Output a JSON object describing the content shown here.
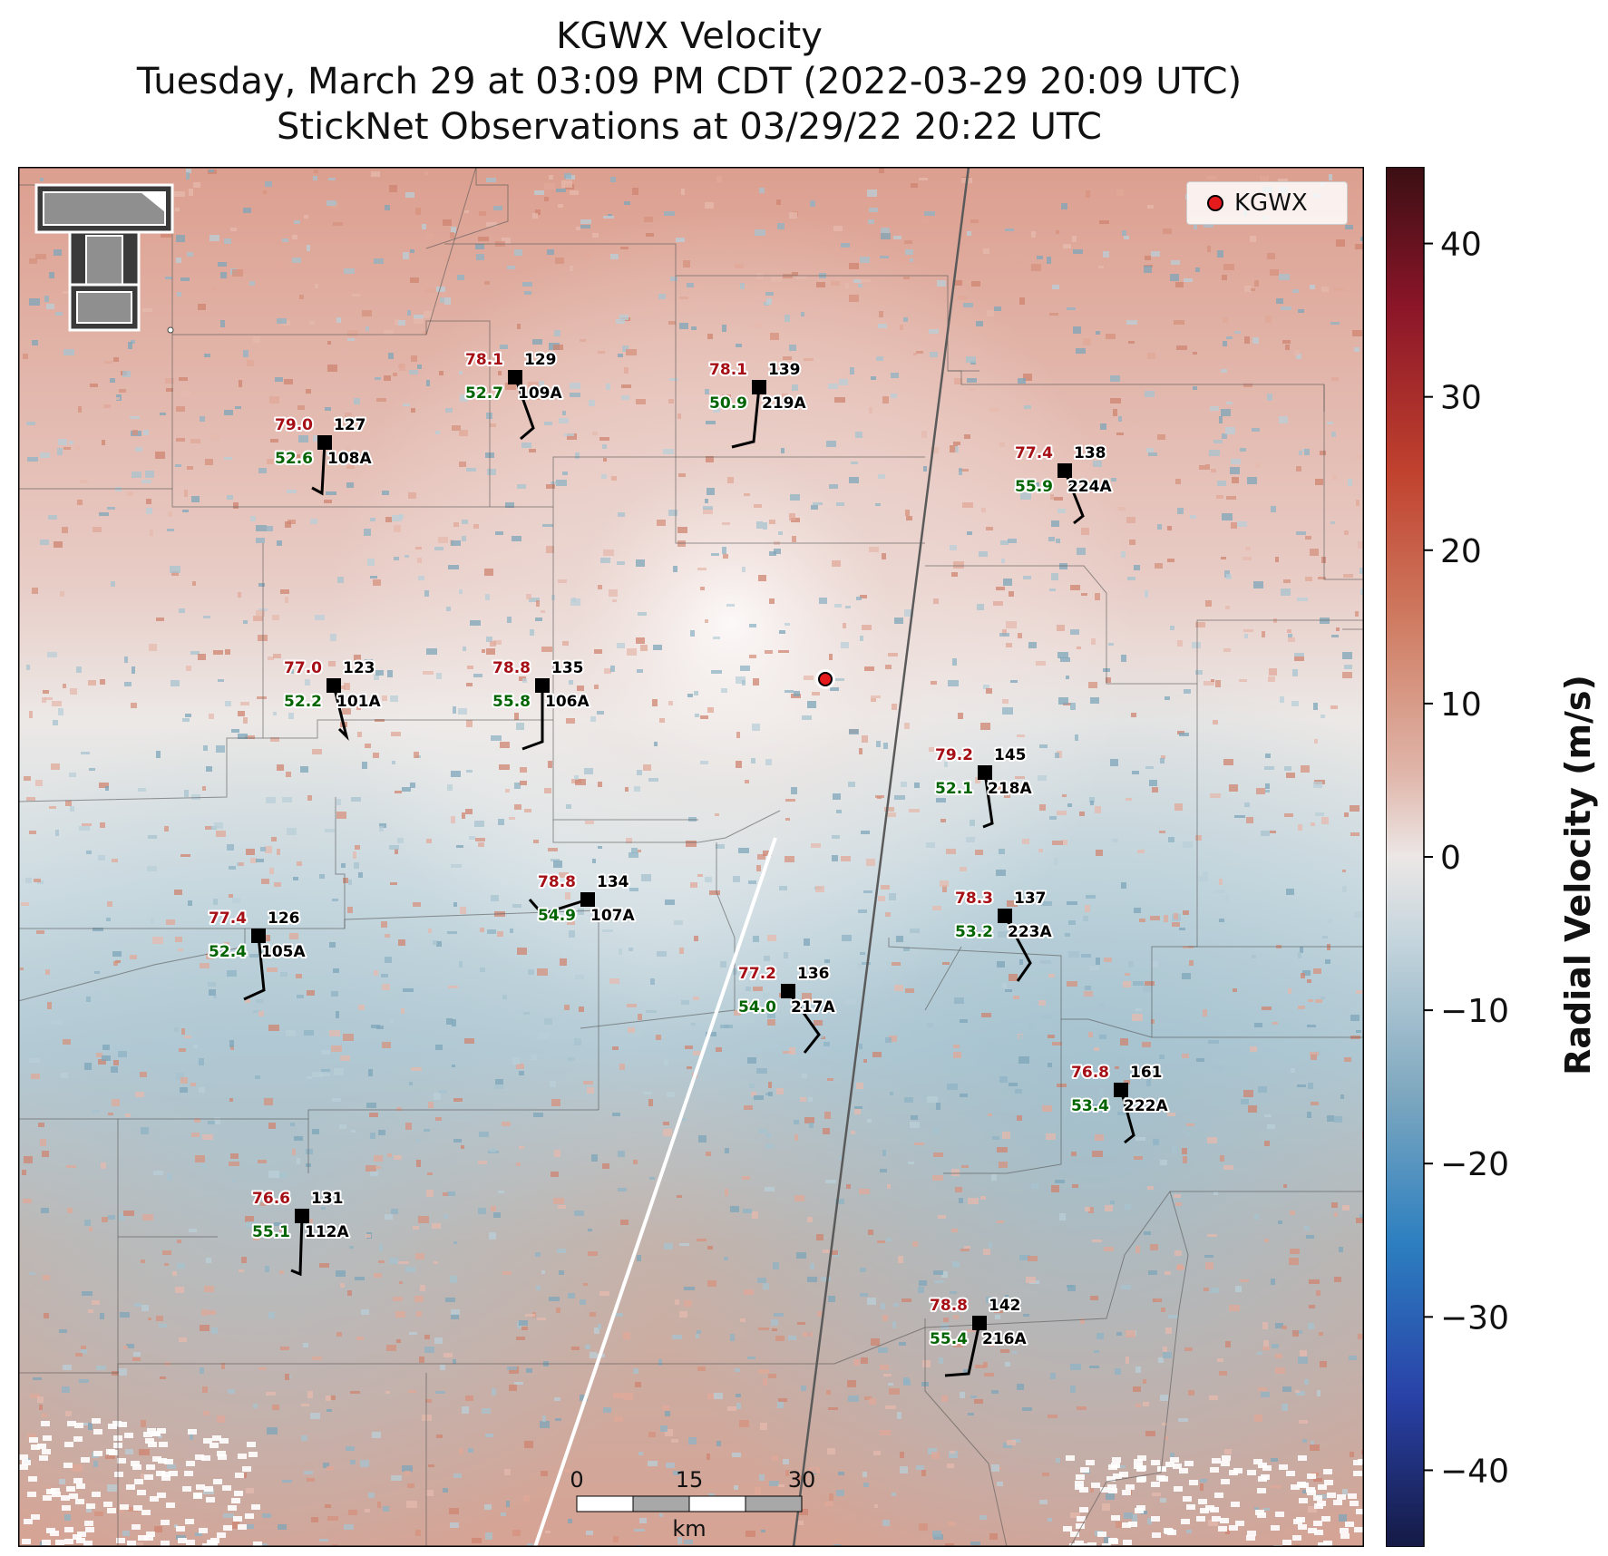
{
  "header": {
    "title_line1": "KGWX Velocity",
    "title_line2": "Tuesday, March 29 at 03:09 PM CDT (2022-03-29 20:09 UTC)",
    "title_line3": "StickNet Observations at 03/29/22 20:22 UTC"
  },
  "legend": {
    "label": "KGWX"
  },
  "colorbar": {
    "label": "Radial Velocity (m/s)",
    "ticks": [
      "40",
      "30",
      "20",
      "10",
      "0",
      "−10",
      "−20",
      "−30",
      "−40"
    ]
  },
  "scale_bar": {
    "labels": [
      "0",
      "15",
      "30"
    ],
    "unit": "km"
  },
  "stations": [
    {
      "id": "109A",
      "num": "129",
      "temp": "78.1",
      "dew": "52.7"
    },
    {
      "id": "219A",
      "num": "139",
      "temp": "78.1",
      "dew": "50.9"
    },
    {
      "id": "108A",
      "num": "127",
      "temp": "79.0",
      "dew": "52.6"
    },
    {
      "id": "224A",
      "num": "138",
      "temp": "77.4",
      "dew": "55.9"
    },
    {
      "id": "101A",
      "num": "123",
      "temp": "77.0",
      "dew": "52.2"
    },
    {
      "id": "106A",
      "num": "135",
      "temp": "78.8",
      "dew": "55.8"
    },
    {
      "id": "218A",
      "num": "145",
      "temp": "79.2",
      "dew": "52.1"
    },
    {
      "id": "107A",
      "num": "134",
      "temp": "78.8",
      "dew": "54.9"
    },
    {
      "id": "223A",
      "num": "137",
      "temp": "78.3",
      "dew": "53.2"
    },
    {
      "id": "105A",
      "num": "126",
      "temp": "77.4",
      "dew": "52.4"
    },
    {
      "id": "217A",
      "num": "136",
      "temp": "77.2",
      "dew": "54.0"
    },
    {
      "id": "222A",
      "num": "161",
      "temp": "76.8",
      "dew": "53.4"
    },
    {
      "id": "112A",
      "num": "131",
      "temp": "76.6",
      "dew": "55.1"
    },
    {
      "id": "216A",
      "num": "142",
      "temp": "78.8",
      "dew": "55.4"
    }
  ]
}
